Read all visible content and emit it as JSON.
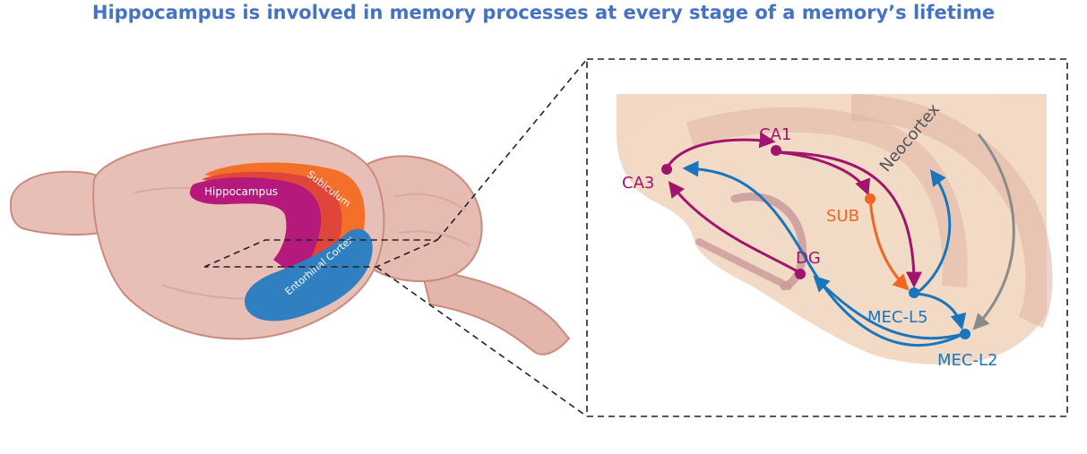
{
  "title": "Hippocampus is involved in memory processes at every stage of a memory’s lifetime",
  "brain_labels": {
    "hippocampus": "Hippocampus",
    "subiculum": "Subiculum",
    "entorhinal_cortex": "Entorhinal Cortex"
  },
  "circuit_labels": {
    "ca1": "CA1",
    "ca3": "CA3",
    "dg": "DG",
    "sub": "SUB",
    "mec_l5": "MEC-L5",
    "mec_l2": "MEC-L2",
    "neocortex": "Neocortex"
  },
  "colors": {
    "title": "#4472c4",
    "purple": "#a0146e",
    "blue": "#1a75bc",
    "orange": "#f26522",
    "gray": "#8a8a8a",
    "brain": "#e8bfb6",
    "hippocampus": "#b5197b",
    "subiculum": "#f36f2a",
    "entorhinal": "#2f7fc1"
  }
}
